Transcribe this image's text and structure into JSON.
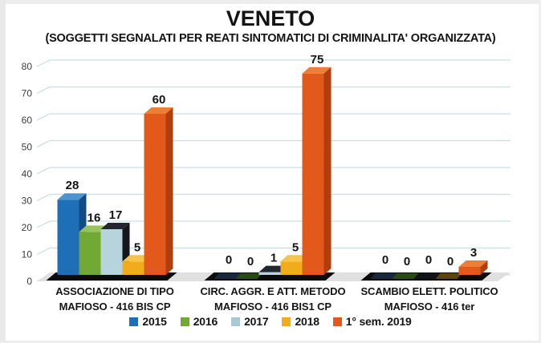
{
  "page": {
    "title": "VENETO",
    "subtitle": "(SOGGETTI SEGNALATI PER REATI SINTOMATICI DI CRIMINALITA' ORGANIZZATA)"
  },
  "chart_data": {
    "type": "bar",
    "style": "3d-clustered-column",
    "title": "VENETO",
    "subtitle": "(SOGGETTI SEGNALATI PER REATI SINTOMATICI DI CRIMINALITA' ORGANIZZATA)",
    "categories": [
      {
        "line1": "ASSOCIAZIONE DI TIPO",
        "line2": "MAFIOSO - 416 BIS CP"
      },
      {
        "line1": "CIRC. AGGR. E ATT. METODO",
        "line2": "MAFIOSO - 416 BIS1 CP"
      },
      {
        "line1": "SCAMBIO ELETT. POLITICO",
        "line2": "MAFIOSO - 416 ter"
      }
    ],
    "series": [
      {
        "name": "2015",
        "values": [
          28,
          0,
          0
        ],
        "front": "#1e6fb8",
        "top": "#4e94cf",
        "side": "#134c85",
        "zero_sliver": "#18283e",
        "legend": "#1e6fb8"
      },
      {
        "name": "2016",
        "values": [
          16,
          0,
          0
        ],
        "front": "#72a836",
        "top": "#97c35c",
        "side": "#4c7a1e",
        "zero_sliver": "#2a4a14",
        "legend": "#72a836"
      },
      {
        "name": "2017",
        "values": [
          17,
          1,
          0
        ],
        "front": "#b7d3dc",
        "top": "#23262e",
        "side": "#15171d",
        "zero_sliver": "#111318",
        "legend": "#a9c9d2"
      },
      {
        "name": "2018",
        "values": [
          5,
          5,
          0
        ],
        "front": "#f2ac1b",
        "top": "#f6c34a",
        "side": "#b5770e",
        "zero_sliver": "#5f430d",
        "legend": "#f2ac1b"
      },
      {
        "name": "1° sem. 2019",
        "values": [
          60,
          75,
          3
        ],
        "front": "#e3591b",
        "top": "#ec7e35",
        "side": "#af3f10",
        "zero_sliver": "#6b2a0c",
        "legend": "#e3591b"
      }
    ],
    "ylim": [
      0,
      80
    ],
    "yticks": [
      0,
      10,
      20,
      30,
      40,
      50,
      60,
      70,
      80
    ],
    "grid": true,
    "legend_position": "bottom",
    "data_labels": true,
    "colors": {
      "grid": "#c9dde2",
      "grid_diag": "#b3ccd3",
      "floor": "#e0e0e0",
      "shadow": "#0c0c0c",
      "text": "#141414",
      "tick": "#3d3d3d"
    }
  }
}
